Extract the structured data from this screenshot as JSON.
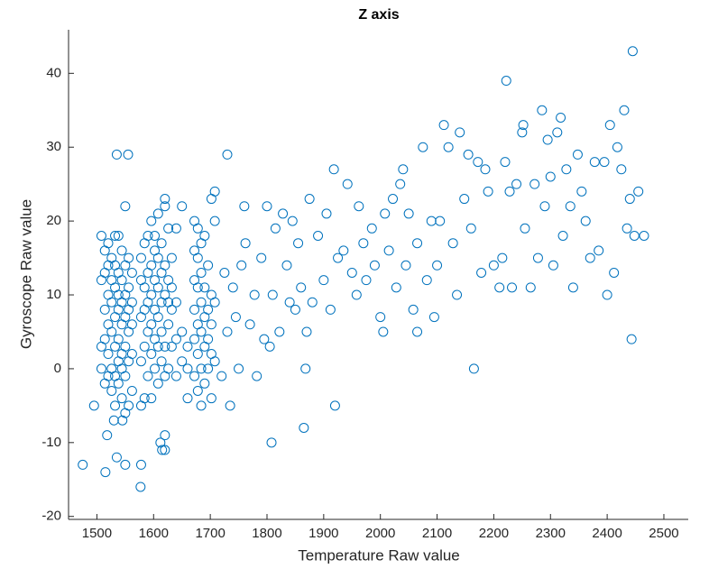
{
  "chart_data": {
    "type": "scatter",
    "title": "Z axis",
    "x_label": "Temperature Raw value",
    "y_label": "Gyroscope Raw value",
    "color": "#0072bd",
    "grid": false,
    "xlim": [
      1450,
      2543
    ],
    "ylim": [
      -20.4,
      45.9
    ],
    "xticks": [
      1500,
      1600,
      1700,
      1800,
      1900,
      2000,
      2100,
      2200,
      2300,
      2400,
      2500
    ],
    "yticks": [
      -20,
      -10,
      0,
      10,
      20,
      30,
      40
    ],
    "x": [
      1475,
      1515,
      1535,
      1550,
      1578,
      1577,
      1495,
      1518,
      1530,
      1545,
      1612,
      1615,
      1620,
      1620,
      1808,
      1865,
      1920,
      1535,
      1555,
      1730,
      1868,
      2165,
      2065,
      2005,
      2443,
      2445,
      2222,
      1508,
      1508,
      1508,
      1508,
      1514,
      1514,
      1514,
      1514,
      1514,
      1520,
      1520,
      1520,
      1520,
      1520,
      1520,
      1526,
      1526,
      1526,
      1526,
      1526,
      1526,
      1532,
      1532,
      1532,
      1532,
      1532,
      1532,
      1532,
      1538,
      1538,
      1538,
      1538,
      1538,
      1538,
      1538,
      1544,
      1544,
      1544,
      1544,
      1544,
      1544,
      1544,
      1550,
      1550,
      1550,
      1550,
      1550,
      1550,
      1550,
      1556,
      1556,
      1556,
      1556,
      1556,
      1556,
      1562,
      1562,
      1562,
      1562,
      1562,
      1578,
      1578,
      1578,
      1578,
      1578,
      1584,
      1584,
      1584,
      1584,
      1584,
      1590,
      1590,
      1590,
      1590,
      1590,
      1596,
      1596,
      1596,
      1596,
      1596,
      1596,
      1602,
      1602,
      1602,
      1602,
      1602,
      1602,
      1608,
      1608,
      1608,
      1608,
      1608,
      1608,
      1614,
      1614,
      1614,
      1614,
      1614,
      1620,
      1620,
      1620,
      1620,
      1620,
      1620,
      1626,
      1626,
      1626,
      1626,
      1626,
      1632,
      1632,
      1632,
      1632,
      1640,
      1640,
      1640,
      1640,
      1650,
      1650,
      1650,
      1660,
      1660,
      1660,
      1672,
      1672,
      1672,
      1672,
      1672,
      1672,
      1678,
      1678,
      1678,
      1678,
      1678,
      1678,
      1684,
      1684,
      1684,
      1684,
      1684,
      1684,
      1690,
      1690,
      1690,
      1690,
      1690,
      1696,
      1696,
      1696,
      1696,
      1702,
      1702,
      1702,
      1702,
      1702,
      1708,
      1708,
      1708,
      1708,
      1720,
      1725,
      1730,
      1735,
      1740,
      1745,
      1750,
      1755,
      1760,
      1762,
      1770,
      1778,
      1782,
      1790,
      1795,
      1800,
      1805,
      1810,
      1815,
      1822,
      1828,
      1835,
      1840,
      1845,
      1850,
      1855,
      1860,
      1870,
      1875,
      1880,
      1890,
      1900,
      1905,
      1912,
      1918,
      1925,
      1935,
      1942,
      1950,
      1958,
      1962,
      1970,
      1975,
      1985,
      1990,
      2000,
      2008,
      2015,
      2022,
      2028,
      2035,
      2040,
      2045,
      2050,
      2058,
      2065,
      2075,
      2082,
      2090,
      2095,
      2100,
      2105,
      2112,
      2120,
      2128,
      2135,
      2140,
      2148,
      2155,
      2160,
      2172,
      2178,
      2185,
      2190,
      2200,
      2210,
      2215,
      2220,
      2228,
      2232,
      2240,
      2250,
      2252,
      2255,
      2265,
      2272,
      2278,
      2285,
      2290,
      2295,
      2300,
      2305,
      2312,
      2318,
      2322,
      2328,
      2335,
      2340,
      2348,
      2355,
      2362,
      2370,
      2378,
      2385,
      2395,
      2400,
      2405,
      2412,
      2418,
      2425,
      2430,
      2435,
      2440,
      2448,
      2455,
      2465
    ],
    "y": [
      -13,
      -14,
      -12,
      -13,
      -13,
      -16,
      -5,
      -9,
      -7,
      -7,
      -10,
      -11,
      -9,
      -11,
      -10,
      -8,
      -5,
      29,
      29,
      29,
      0,
      0,
      5,
      5,
      4,
      43,
      39,
      3,
      12,
      18,
      0,
      -2,
      4,
      8,
      13,
      16,
      -1,
      2,
      6,
      10,
      14,
      17,
      -3,
      0,
      5,
      9,
      12,
      15,
      -5,
      -1,
      3,
      7,
      11,
      14,
      18,
      -2,
      1,
      4,
      8,
      10,
      13,
      18,
      -4,
      0,
      2,
      6,
      9,
      12,
      16,
      -6,
      -1,
      3,
      7,
      10,
      14,
      22,
      -5,
      1,
      5,
      8,
      11,
      15,
      -3,
      2,
      6,
      9,
      13,
      -5,
      1,
      7,
      12,
      15,
      -4,
      3,
      8,
      11,
      17,
      -1,
      5,
      9,
      13,
      18,
      -4,
      2,
      6,
      10,
      14,
      20,
      0,
      4,
      8,
      12,
      16,
      18,
      -2,
      3,
      7,
      11,
      15,
      21,
      1,
      5,
      9,
      13,
      17,
      -1,
      3,
      10,
      14,
      22,
      23,
      0,
      6,
      9,
      12,
      19,
      3,
      8,
      11,
      15,
      -1,
      4,
      9,
      19,
      1,
      5,
      22,
      -4,
      0,
      3,
      -1,
      4,
      8,
      12,
      16,
      20,
      -3,
      2,
      6,
      11,
      15,
      19,
      -5,
      0,
      5,
      9,
      13,
      17,
      -2,
      3,
      7,
      11,
      18,
      0,
      4,
      8,
      14,
      -4,
      2,
      6,
      10,
      23,
      1,
      9,
      20,
      24,
      -1,
      13,
      5,
      -5,
      11,
      7,
      0,
      14,
      22,
      17,
      6,
      10,
      -1,
      15,
      4,
      22,
      3,
      10,
      19,
      5,
      21,
      14,
      9,
      20,
      8,
      17,
      11,
      5,
      23,
      9,
      18,
      12,
      21,
      8,
      27,
      15,
      16,
      25,
      13,
      10,
      22,
      17,
      12,
      19,
      14,
      7,
      21,
      16,
      23,
      11,
      25,
      27,
      14,
      21,
      8,
      17,
      30,
      12,
      20,
      7,
      14,
      20,
      33,
      30,
      17,
      10,
      32,
      23,
      29,
      19,
      28,
      13,
      27,
      24,
      14,
      11,
      15,
      28,
      24,
      11,
      25,
      32,
      33,
      19,
      11,
      25,
      15,
      35,
      22,
      31,
      26,
      14,
      32,
      34,
      18,
      27,
      22,
      11,
      29,
      24,
      20,
      15,
      28,
      16,
      28,
      10,
      33,
      13,
      30,
      27,
      35,
      19,
      23,
      18,
      24,
      18
    ]
  }
}
